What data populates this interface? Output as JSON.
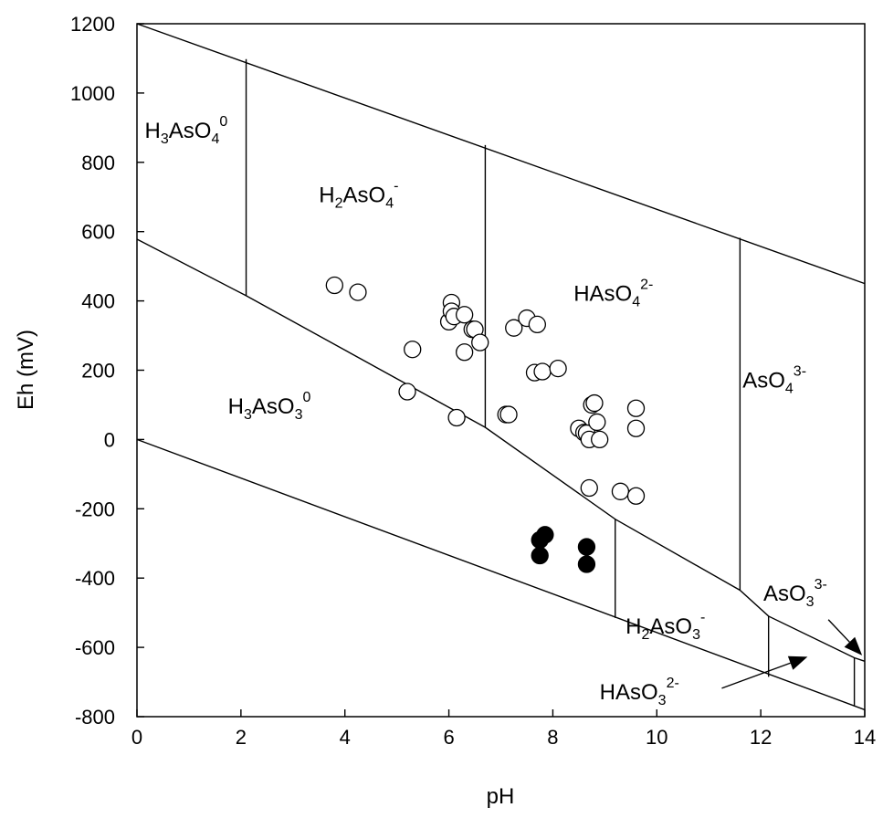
{
  "chart_data": {
    "type": "scatter",
    "title": "",
    "xlabel": "pH",
    "ylabel": "Eh (mV)",
    "xlim": [
      0,
      14
    ],
    "ylim": [
      -800,
      1200
    ],
    "xticks": [
      "0",
      "2",
      "4",
      "6",
      "8",
      "10",
      "12",
      "14"
    ],
    "yticks": [
      "-800",
      "-600",
      "-400",
      "-200",
      "0",
      "200",
      "400",
      "600",
      "800",
      "1000",
      "1200"
    ],
    "grid": false,
    "boundaries": {
      "water_upper": [
        [
          0,
          1200
        ],
        [
          14,
          450
        ]
      ],
      "water_lower": [
        [
          0,
          0
        ],
        [
          14,
          -780
        ]
      ],
      "arsenate_arsenite": [
        [
          0,
          578
        ],
        [
          2.1,
          415
        ],
        [
          6.7,
          35
        ],
        [
          9.2,
          -230
        ],
        [
          11.6,
          -435
        ],
        [
          12.15,
          -510
        ],
        [
          13.8,
          -630
        ],
        [
          14,
          -640
        ]
      ],
      "verticals": [
        {
          "x": 2.1,
          "y": [
            415,
            1098
          ]
        },
        {
          "x": 6.7,
          "y": [
            35,
            850
          ]
        },
        {
          "x": 11.6,
          "y": [
            -435,
            582
          ]
        },
        {
          "x": 9.2,
          "y": [
            -515,
            -230
          ]
        },
        {
          "x": 12.15,
          "y": [
            -685,
            -510
          ]
        },
        {
          "x": 13.8,
          "y": [
            -770,
            -630
          ]
        }
      ]
    },
    "species_labels": [
      {
        "base": "H",
        "sub1": "3",
        "mid": "AsO",
        "sub2": "4",
        "sup": "0",
        "x": 0.15,
        "y": 870
      },
      {
        "base": "H",
        "sub1": "2",
        "mid": "AsO",
        "sub2": "4",
        "sup": "-",
        "x": 3.5,
        "y": 685
      },
      {
        "base": "",
        "sub1": "",
        "mid": "HAsO",
        "sub2": "4",
        "sup": "2-",
        "x": 8.4,
        "y": 400
      },
      {
        "base": "",
        "sub1": "",
        "mid": "AsO",
        "sub2": "4",
        "sup": "3-",
        "x": 11.65,
        "y": 150
      },
      {
        "base": "H",
        "sub1": "3",
        "mid": "AsO",
        "sub2": "3",
        "sup": "0",
        "x": 1.75,
        "y": 75
      },
      {
        "base": "H",
        "sub1": "2",
        "mid": "AsO",
        "sub2": "3",
        "sup": "-",
        "x": 9.4,
        "y": -560
      },
      {
        "base": "",
        "sub1": "",
        "mid": "AsO",
        "sub2": "3",
        "sup": "3-",
        "x": 12.05,
        "y": -465
      },
      {
        "base": "",
        "sub1": "",
        "mid": "HAsO",
        "sub2": "3",
        "sup": "2-",
        "x": 8.9,
        "y": -750
      }
    ],
    "series": [
      {
        "marker": "open-circle",
        "points": [
          [
            3.8,
            445
          ],
          [
            4.25,
            425
          ],
          [
            5.2,
            138
          ],
          [
            5.3,
            260
          ],
          [
            6.0,
            340
          ],
          [
            6.05,
            395
          ],
          [
            6.05,
            370
          ],
          [
            6.1,
            355
          ],
          [
            6.3,
            360
          ],
          [
            6.3,
            252
          ],
          [
            6.45,
            318
          ],
          [
            6.5,
            318
          ],
          [
            6.6,
            280
          ],
          [
            6.15,
            63
          ],
          [
            7.1,
            72
          ],
          [
            7.15,
            72
          ],
          [
            7.25,
            322
          ],
          [
            7.5,
            350
          ],
          [
            7.7,
            332
          ],
          [
            7.65,
            193
          ],
          [
            7.8,
            196
          ],
          [
            8.1,
            205
          ],
          [
            8.5,
            32
          ],
          [
            8.6,
            20
          ],
          [
            8.65,
            18
          ],
          [
            8.7,
            0
          ],
          [
            8.75,
            100
          ],
          [
            8.8,
            105
          ],
          [
            8.85,
            50
          ],
          [
            8.9,
            0
          ],
          [
            8.7,
            -140
          ],
          [
            9.3,
            -150
          ],
          [
            9.6,
            -163
          ],
          [
            9.6,
            90
          ],
          [
            9.6,
            32
          ]
        ]
      },
      {
        "marker": "filled-circle",
        "points": [
          [
            7.75,
            -290
          ],
          [
            7.85,
            -275
          ],
          [
            7.75,
            -335
          ],
          [
            8.65,
            -310
          ],
          [
            8.65,
            -360
          ]
        ]
      }
    ],
    "arrows": [
      {
        "from": [
          11.25,
          -718
        ],
        "to": [
          12.9,
          -627
        ]
      },
      {
        "from": [
          13.3,
          -520
        ],
        "to": [
          13.95,
          -623
        ]
      }
    ]
  }
}
